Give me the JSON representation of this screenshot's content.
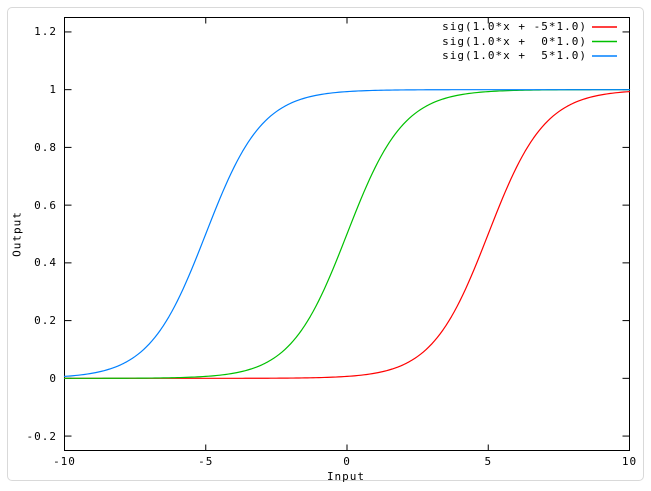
{
  "frame": {
    "border_color": "#d9d9d9"
  },
  "chart_data": {
    "type": "line",
    "title": "",
    "xlabel": "Input",
    "ylabel": "Output",
    "xlim": [
      -10,
      10
    ],
    "ylim": [
      -0.25,
      1.25
    ],
    "grid": false,
    "axis_color": "#000000",
    "legend_position": "top-right-inside",
    "xticks": {
      "values": [
        -10,
        -5,
        0,
        5,
        10
      ],
      "labels": [
        "-10",
        "-5",
        "0",
        "5",
        "10"
      ]
    },
    "yticks": {
      "values": [
        -0.2,
        0,
        0.2,
        0.4,
        0.6,
        0.8,
        1,
        1.2
      ],
      "labels": [
        "-0.2",
        "0",
        "0.2",
        "0.4",
        "0.6",
        "0.8",
        "1",
        "1.2"
      ]
    },
    "x_samples": [
      -10,
      -9,
      -8,
      -7,
      -6,
      -5,
      -4,
      -3,
      -2,
      -1,
      0,
      1,
      2,
      3,
      4,
      5,
      6,
      7,
      8,
      9,
      10
    ],
    "series": [
      {
        "label": "sig(1.0*x + -5*1.0)",
        "color": "#ff0000",
        "function": "sigmoid",
        "slope": 1.0,
        "bias": -5.0,
        "values": [
          0.0,
          0.0,
          0.0,
          0.0,
          0.0,
          0.0,
          0.0001,
          0.0003,
          0.0009,
          0.0025,
          0.0067,
          0.018,
          0.0474,
          0.1192,
          0.2689,
          0.5,
          0.7311,
          0.8808,
          0.9526,
          0.982,
          0.9933
        ]
      },
      {
        "label": "sig(1.0*x +  0*1.0)",
        "color": "#00c000",
        "function": "sigmoid",
        "slope": 1.0,
        "bias": 0.0,
        "values": [
          0.0,
          0.0001,
          0.0003,
          0.0009,
          0.0025,
          0.0067,
          0.018,
          0.0474,
          0.1192,
          0.2689,
          0.5,
          0.7311,
          0.8808,
          0.9526,
          0.982,
          0.9933,
          0.9975,
          0.9991,
          0.9997,
          0.9999,
          1.0
        ]
      },
      {
        "label": "sig(1.0*x +  5*1.0)",
        "color": "#0080ff",
        "function": "sigmoid",
        "slope": 1.0,
        "bias": 5.0,
        "values": [
          0.0067,
          0.018,
          0.0474,
          0.1192,
          0.2689,
          0.5,
          0.7311,
          0.8808,
          0.9526,
          0.982,
          0.9933,
          0.9975,
          0.9991,
          0.9997,
          0.9999,
          1.0,
          1.0,
          1.0,
          1.0,
          1.0,
          1.0
        ]
      }
    ]
  }
}
